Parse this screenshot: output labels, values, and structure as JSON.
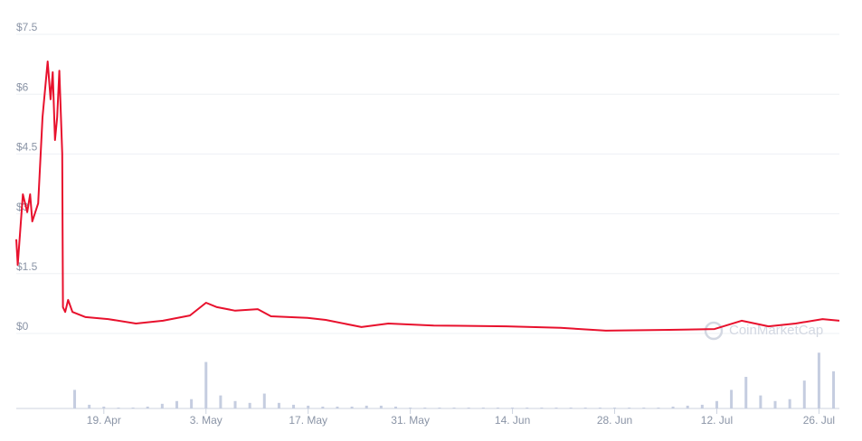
{
  "chart_data": {
    "type": "line",
    "x": [
      0,
      0.2,
      0.9,
      1.5,
      1.9,
      2.2,
      3.0,
      3.6,
      4.3,
      4.7,
      5.0,
      5.3,
      5.6,
      5.9,
      6.3,
      6.4,
      6.7,
      7.1,
      7.7,
      9.5,
      12.6,
      16.4,
      20.1,
      23.8,
      26.0,
      27.5,
      30.0,
      33.1,
      34.9,
      39.9,
      42.4,
      47.3,
      51.0,
      57.2,
      67.2,
      74.6,
      80.8,
      89.5,
      95.7,
      99.4,
      103.1,
      106.8,
      110.5,
      112.8
    ],
    "values": [
      2.36,
      1.72,
      3.49,
      3.04,
      3.49,
      2.81,
      3.26,
      5.42,
      6.82,
      5.87,
      6.55,
      4.85,
      5.42,
      6.59,
      4.51,
      0.66,
      0.54,
      0.84,
      0.54,
      0.41,
      0.36,
      0.25,
      0.32,
      0.45,
      0.77,
      0.66,
      0.57,
      0.61,
      0.43,
      0.39,
      0.34,
      0.16,
      0.25,
      0.2,
      0.18,
      0.14,
      0.07,
      0.09,
      0.11,
      0.32,
      0.18,
      0.25,
      0.36,
      0.32
    ],
    "color": "#e8112d",
    "xlim": [
      0,
      112.8
    ],
    "xticks": [
      {
        "value": 12,
        "label": "19. Apr"
      },
      {
        "value": 26,
        "label": "3. May"
      },
      {
        "value": 40,
        "label": "17. May"
      },
      {
        "value": 54,
        "label": "31. May"
      },
      {
        "value": 68,
        "label": "14. Jun"
      },
      {
        "value": 82,
        "label": "28. Jun"
      },
      {
        "value": 96,
        "label": "12. Jul"
      },
      {
        "value": 110,
        "label": "26. Jul"
      }
    ],
    "ylim": [
      0,
      7.5
    ],
    "yticks": [
      {
        "value": 0,
        "label": "$0"
      },
      {
        "value": 1.5,
        "label": "$1.5"
      },
      {
        "value": 3,
        "label": "$3"
      },
      {
        "value": 4.5,
        "label": "$4.5"
      },
      {
        "value": 6,
        "label": "$6"
      },
      {
        "value": 7.5,
        "label": "$7.5"
      }
    ],
    "grid": true,
    "watermark": "CoinMarketCap",
    "volume": {
      "color": "#c5cde0",
      "ylim": [
        0,
        70
      ],
      "x": [
        0,
        2,
        4,
        6,
        8,
        10,
        12,
        14,
        16,
        18,
        20,
        22,
        24,
        26,
        28,
        30,
        32,
        34,
        36,
        38,
        40,
        42,
        44,
        46,
        48,
        50,
        52,
        54,
        56,
        58,
        60,
        62,
        64,
        66,
        68,
        70,
        72,
        74,
        76,
        78,
        80,
        82,
        84,
        86,
        88,
        90,
        92,
        94,
        96,
        98,
        100,
        102,
        104,
        106,
        108,
        110,
        112
      ],
      "values": [
        0,
        0,
        0,
        0,
        20,
        4,
        2,
        1,
        1,
        2,
        5,
        8,
        10,
        50,
        14,
        8,
        6,
        16,
        6,
        4,
        3,
        2,
        2,
        2,
        3,
        3,
        2,
        1,
        1,
        1,
        1,
        1,
        1,
        1,
        1,
        1,
        1,
        1,
        1,
        1,
        1,
        1,
        1,
        1,
        1,
        2,
        3,
        4,
        8,
        20,
        34,
        14,
        8,
        10,
        30,
        60,
        40
      ]
    }
  }
}
